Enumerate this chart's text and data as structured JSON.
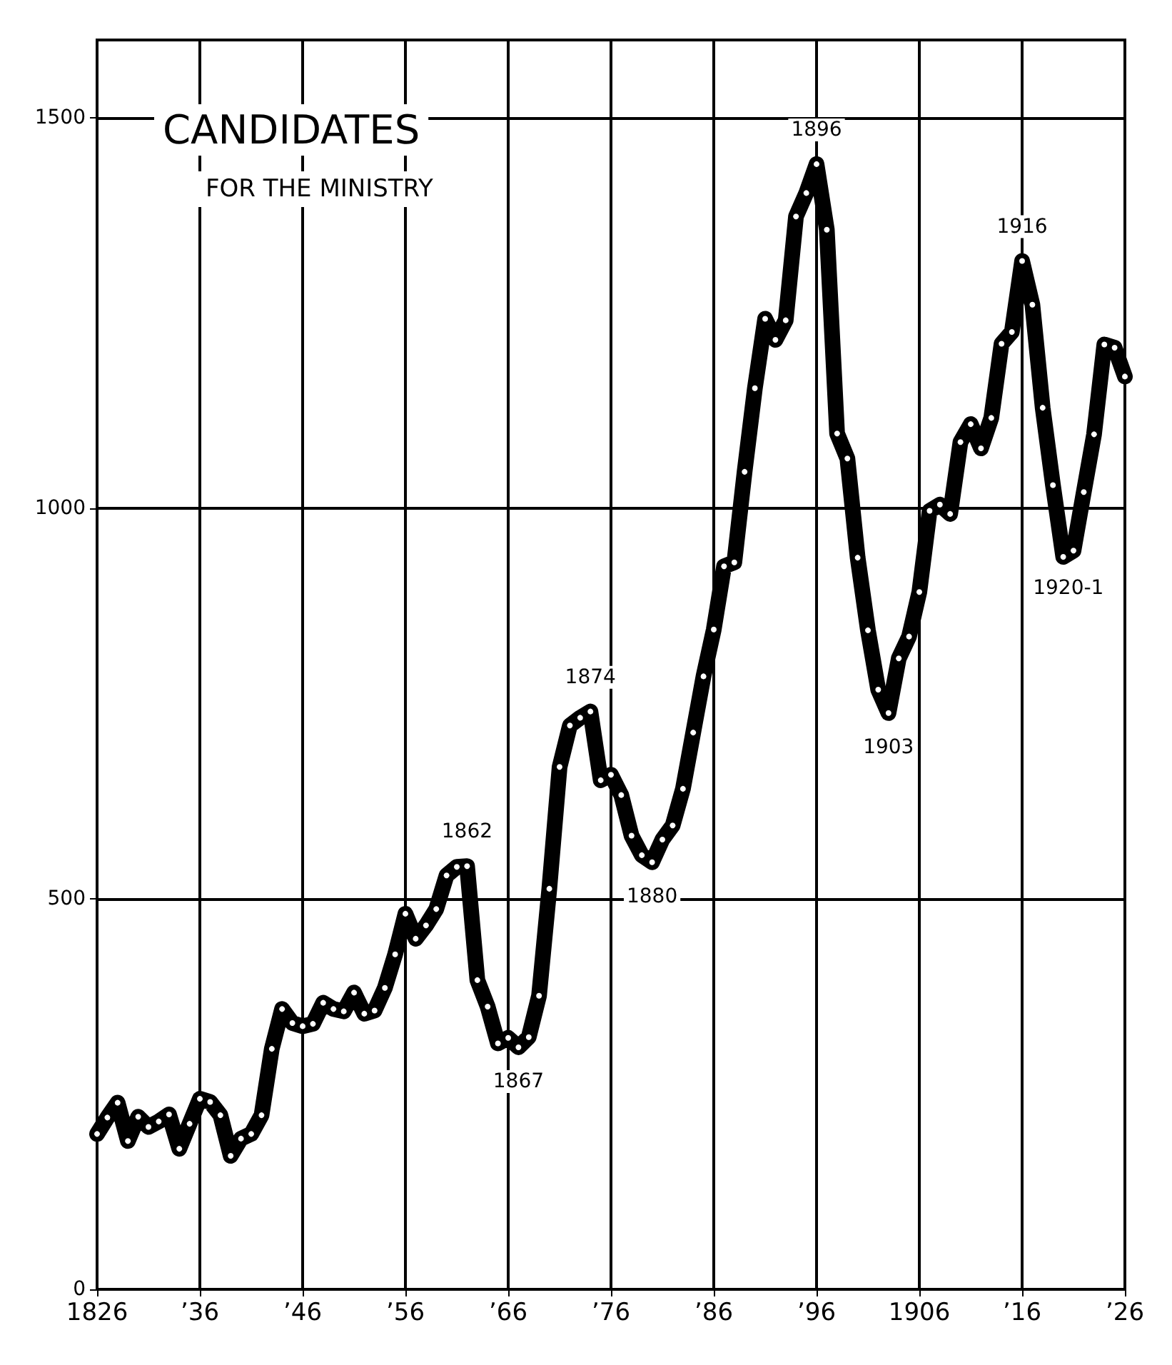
{
  "chart_data": {
    "type": "line",
    "title": "CANDIDATES",
    "subtitle": "FOR THE MINISTRY",
    "x": [
      1826,
      1827,
      1828,
      1829,
      1830,
      1831,
      1832,
      1833,
      1834,
      1835,
      1836,
      1837,
      1838,
      1839,
      1840,
      1841,
      1842,
      1843,
      1844,
      1845,
      1846,
      1847,
      1848,
      1849,
      1850,
      1851,
      1852,
      1853,
      1854,
      1855,
      1856,
      1857,
      1858,
      1859,
      1860,
      1861,
      1862,
      1863,
      1864,
      1865,
      1866,
      1867,
      1868,
      1869,
      1870,
      1871,
      1872,
      1873,
      1874,
      1875,
      1876,
      1877,
      1878,
      1879,
      1880,
      1881,
      1882,
      1883,
      1884,
      1885,
      1886,
      1887,
      1888,
      1889,
      1890,
      1891,
      1892,
      1893,
      1894,
      1895,
      1896,
      1897,
      1898,
      1899,
      1900,
      1901,
      1902,
      1903,
      1904,
      1905,
      1906,
      1907,
      1908,
      1909,
      1910,
      1911,
      1912,
      1913,
      1914,
      1915,
      1916,
      1917,
      1918,
      1919,
      1920,
      1921,
      1922,
      1923,
      1924,
      1925,
      1926
    ],
    "series": [
      {
        "color": "#000000",
        "values": [
          199,
          220,
          239,
          190,
          221,
          208,
          215,
          224,
          180,
          212,
          244,
          240,
          223,
          171,
          193,
          199,
          223,
          308,
          359,
          341,
          337,
          340,
          367,
          359,
          356,
          380,
          353,
          357,
          386,
          429,
          481,
          449,
          466,
          487,
          530,
          541,
          542,
          396,
          362,
          315,
          322,
          310,
          323,
          376,
          513,
          669,
          722,
          732,
          740,
          652,
          659,
          633,
          581,
          556,
          547,
          576,
          594,
          641,
          713,
          785,
          845,
          926,
          931,
          1047,
          1154,
          1243,
          1216,
          1241,
          1374,
          1404,
          1441,
          1357,
          1096,
          1064,
          937,
          844,
          768,
          738,
          808,
          836,
          893,
          997,
          1005,
          993,
          1085,
          1108,
          1077,
          1116,
          1211,
          1226,
          1317,
          1261,
          1129,
          1030,
          938,
          946,
          1021,
          1095,
          1210,
          1206,
          1169
        ]
      }
    ],
    "xlim": [
      1826,
      1926
    ],
    "xticks": [
      {
        "value": 1826,
        "label": "1826"
      },
      {
        "value": 1836,
        "label": "’36"
      },
      {
        "value": 1846,
        "label": "’46"
      },
      {
        "value": 1856,
        "label": "’56"
      },
      {
        "value": 1866,
        "label": "’66"
      },
      {
        "value": 1876,
        "label": "’76"
      },
      {
        "value": 1886,
        "label": "’86"
      },
      {
        "value": 1896,
        "label": "’96"
      },
      {
        "value": 1906,
        "label": "1906"
      },
      {
        "value": 1916,
        "label": "’16"
      },
      {
        "value": 1926,
        "label": "’26"
      }
    ],
    "ylim": [
      0,
      1600
    ],
    "yticks": [
      0,
      500,
      1000,
      1500
    ],
    "grid": true,
    "marker": "circle",
    "line_style": "solid",
    "annotations": [
      {
        "text": "1862",
        "x": 1862,
        "y": 542
      },
      {
        "text": "1867",
        "x": 1867,
        "y": 310
      },
      {
        "text": "1874",
        "x": 1874,
        "y": 740
      },
      {
        "text": "1880",
        "x": 1880,
        "y": 547
      },
      {
        "text": "1896",
        "x": 1896,
        "y": 1441
      },
      {
        "text": "1903",
        "x": 1903,
        "y": 738
      },
      {
        "text": "1916",
        "x": 1916,
        "y": 1317
      },
      {
        "text": "1920-1",
        "x": 1920.5,
        "y": 942
      }
    ]
  }
}
